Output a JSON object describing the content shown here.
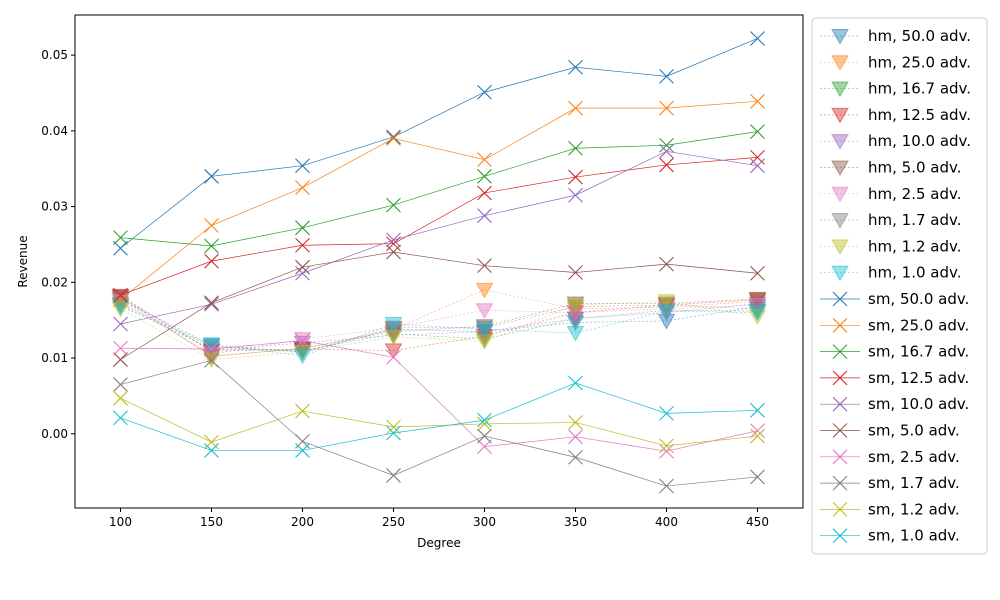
{
  "chart_data": {
    "type": "line",
    "xlabel": "Degree",
    "ylabel": "Revenue",
    "xlim": [
      75,
      475
    ],
    "ylim": [
      -0.0098,
      0.0553
    ],
    "xticks": [
      "100",
      "150",
      "200",
      "250",
      "300",
      "350",
      "400",
      "450"
    ],
    "yticks": [
      "0.00",
      "0.01",
      "0.02",
      "0.03",
      "0.04",
      "0.05"
    ],
    "legend_position": "outside right",
    "x": [
      100,
      150,
      200,
      250,
      300,
      350,
      400,
      450
    ],
    "series": [
      {
        "name": "hm, 50.0 adv.",
        "group": "hm",
        "marker": "triangle-down",
        "color": "#1f77b4",
        "values": [
          0.0177,
          0.0117,
          0.0108,
          0.0138,
          0.0135,
          0.0147,
          0.0149,
          0.0168
        ]
      },
      {
        "name": "hm, 25.0 adv.",
        "group": "hm",
        "marker": "triangle-down",
        "color": "#ff7f0e",
        "values": [
          0.0178,
          0.0103,
          0.0112,
          0.0138,
          0.019,
          0.0165,
          0.0167,
          0.0175
        ]
      },
      {
        "name": "hm, 16.7 adv.",
        "group": "hm",
        "marker": "triangle-down",
        "color": "#2ca02c",
        "values": [
          0.017,
          0.0112,
          0.011,
          0.0132,
          0.0125,
          0.0152,
          0.0163,
          0.0162
        ]
      },
      {
        "name": "hm, 12.5 adv.",
        "group": "hm",
        "marker": "triangle-down",
        "color": "#d62728",
        "values": [
          0.0182,
          0.0109,
          0.0112,
          0.011,
          0.0129,
          0.016,
          0.017,
          0.0177
        ]
      },
      {
        "name": "hm, 10.0 adv.",
        "group": "hm",
        "marker": "triangle-down",
        "color": "#9467bd",
        "values": [
          0.018,
          0.011,
          0.012,
          0.013,
          0.0135,
          0.0152,
          0.016,
          0.0172
        ]
      },
      {
        "name": "hm, 5.0 adv.",
        "group": "hm",
        "marker": "triangle-down",
        "color": "#8c564b",
        "values": [
          0.0181,
          0.0102,
          0.0113,
          0.0135,
          0.0142,
          0.0172,
          0.0172,
          0.0178
        ]
      },
      {
        "name": "hm, 2.5 adv.",
        "group": "hm",
        "marker": "triangle-down",
        "color": "#e377c2",
        "values": [
          0.0175,
          0.0105,
          0.0125,
          0.014,
          0.0163,
          0.016,
          0.0165,
          0.017
        ]
      },
      {
        "name": "hm, 1.7 adv.",
        "group": "hm",
        "marker": "triangle-down",
        "color": "#7f7f7f",
        "values": [
          0.0172,
          0.0115,
          0.0108,
          0.014,
          0.014,
          0.0168,
          0.017,
          0.0165
        ]
      },
      {
        "name": "hm, 1.2 adv.",
        "group": "hm",
        "marker": "triangle-down",
        "color": "#bcbd22",
        "values": [
          0.0165,
          0.0098,
          0.0108,
          0.0128,
          0.0122,
          0.017,
          0.0175,
          0.0155
        ]
      },
      {
        "name": "hm, 1.0 adv.",
        "group": "hm",
        "marker": "triangle-down",
        "color": "#17becf",
        "values": [
          0.0168,
          0.0118,
          0.0103,
          0.0145,
          0.0138,
          0.0133,
          0.0162,
          0.016
        ]
      },
      {
        "name": "sm, 50.0 adv.",
        "group": "sm",
        "marker": "x",
        "color": "#1f77b4",
        "values": [
          0.0245,
          0.034,
          0.0354,
          0.0392,
          0.0451,
          0.0484,
          0.0472,
          0.0522
        ]
      },
      {
        "name": "sm, 25.0 adv.",
        "group": "sm",
        "marker": "x",
        "color": "#ff7f0e",
        "values": [
          0.0177,
          0.0275,
          0.0325,
          0.039,
          0.0362,
          0.043,
          0.043,
          0.0439
        ]
      },
      {
        "name": "sm, 16.7 adv.",
        "group": "sm",
        "marker": "x",
        "color": "#2ca02c",
        "values": [
          0.0259,
          0.0248,
          0.0272,
          0.0302,
          0.034,
          0.0377,
          0.0381,
          0.0399
        ]
      },
      {
        "name": "sm, 12.5 adv.",
        "group": "sm",
        "marker": "x",
        "color": "#d62728",
        "values": [
          0.0183,
          0.0228,
          0.0249,
          0.0251,
          0.0318,
          0.0339,
          0.0355,
          0.0365
        ]
      },
      {
        "name": "sm, 10.0 adv.",
        "group": "sm",
        "marker": "x",
        "color": "#9467bd",
        "values": [
          0.0145,
          0.0171,
          0.0212,
          0.0256,
          0.0288,
          0.0315,
          0.0373,
          0.0354
        ]
      },
      {
        "name": "sm, 5.0 adv.",
        "group": "sm",
        "marker": "x",
        "color": "#8c564b",
        "values": [
          0.0098,
          0.0173,
          0.022,
          0.024,
          0.0222,
          0.0213,
          0.0224,
          0.0212
        ]
      },
      {
        "name": "sm, 2.5 adv.",
        "group": "sm",
        "marker": "x",
        "color": "#e377c2",
        "values": [
          0.0113,
          0.0112,
          0.0123,
          0.0101,
          -0.0017,
          -0.0004,
          -0.0023,
          0.0004
        ]
      },
      {
        "name": "sm, 1.7 adv.",
        "group": "sm",
        "marker": "x",
        "color": "#7f7f7f",
        "values": [
          0.0065,
          0.0097,
          -0.001,
          -0.0055,
          -0.0003,
          -0.0031,
          -0.0069,
          -0.0057
        ]
      },
      {
        "name": "sm, 1.2 adv.",
        "group": "sm",
        "marker": "x",
        "color": "#bcbd22",
        "values": [
          0.0047,
          -0.0011,
          0.003,
          0.0009,
          0.0013,
          0.0015,
          -0.0016,
          -0.0003
        ]
      },
      {
        "name": "sm, 1.0 adv.",
        "group": "sm",
        "marker": "x",
        "color": "#17becf",
        "values": [
          0.0021,
          -0.0022,
          -0.0022,
          0.0001,
          0.0018,
          0.0067,
          0.0027,
          0.0031
        ]
      }
    ]
  }
}
